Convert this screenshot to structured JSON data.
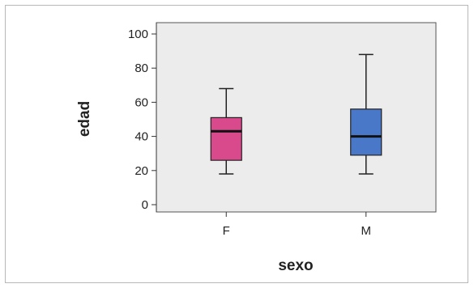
{
  "chart_data": {
    "type": "boxplot",
    "title": "",
    "xlabel": "sexo",
    "ylabel": "edad",
    "ylim": [
      0,
      100
    ],
    "yticks": [
      0,
      20,
      40,
      60,
      80,
      100
    ],
    "grid": false,
    "categories": [
      "F",
      "M"
    ],
    "boxes": [
      {
        "category": "F",
        "min": 18,
        "q1": 26,
        "median": 43,
        "q3": 51,
        "max": 68,
        "color": "#d84a8c"
      },
      {
        "category": "M",
        "min": 18,
        "q1": 29,
        "median": 40,
        "q3": 56,
        "max": 88,
        "color": "#4a78c8"
      }
    ],
    "plot_background": "#ececec"
  }
}
